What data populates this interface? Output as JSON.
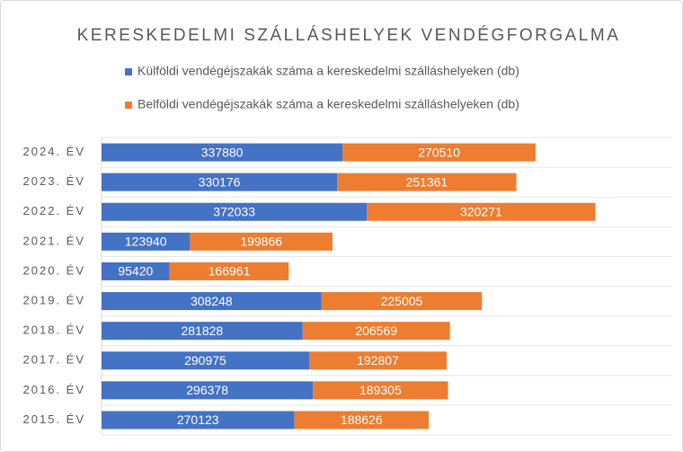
{
  "chart_data": {
    "type": "stacked-bar-horizontal",
    "title": "KERESKEDELMI SZÁLLÁSHELYEK VENDÉGFORGALMA",
    "categories": [
      "2024. ÉV",
      "2023. ÉV",
      "2022. ÉV",
      "2021. ÉV",
      "2020. ÉV",
      "2019. ÉV",
      "2018. ÉV",
      "2017. ÉV",
      "2016. ÉV",
      "2015. ÉV"
    ],
    "series": [
      {
        "name": "Külföldi vendégéjszakák száma a kereskedelmi szálláshelyeken (db)",
        "color": "#4472c4",
        "values": [
          337880,
          330176,
          372033,
          123940,
          95420,
          308248,
          281828,
          290975,
          296378,
          270123
        ]
      },
      {
        "name": "Belföldi vendégéjszakák száma a kereskedelmi szálláshelyeken (db)",
        "color": "#ed7d31",
        "values": [
          270510,
          251361,
          320271,
          199866,
          166961,
          225005,
          206569,
          192807,
          189305,
          188626
        ]
      }
    ],
    "xlim": [
      0,
      800000
    ]
  }
}
